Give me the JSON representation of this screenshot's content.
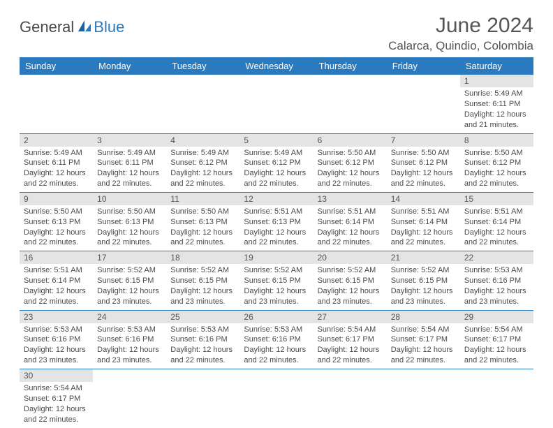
{
  "brand": {
    "general": "General",
    "blue": "Blue"
  },
  "title": "June 2024",
  "location": "Calarca, Quindio, Colombia",
  "colors": {
    "header_bg": "#2a7abf",
    "header_text": "#ffffff",
    "daynum_bg": "#e4e4e4",
    "row_border": "#2a7abf",
    "body_text": "#4a4a4a",
    "title_text": "#555555",
    "page_bg": "#ffffff"
  },
  "dayNames": [
    "Sunday",
    "Monday",
    "Tuesday",
    "Wednesday",
    "Thursday",
    "Friday",
    "Saturday"
  ],
  "weeks": [
    [
      null,
      null,
      null,
      null,
      null,
      null,
      {
        "n": "1",
        "sr": "Sunrise: 5:49 AM",
        "ss": "Sunset: 6:11 PM",
        "d1": "Daylight: 12 hours",
        "d2": "and 21 minutes."
      }
    ],
    [
      {
        "n": "2",
        "sr": "Sunrise: 5:49 AM",
        "ss": "Sunset: 6:11 PM",
        "d1": "Daylight: 12 hours",
        "d2": "and 22 minutes."
      },
      {
        "n": "3",
        "sr": "Sunrise: 5:49 AM",
        "ss": "Sunset: 6:11 PM",
        "d1": "Daylight: 12 hours",
        "d2": "and 22 minutes."
      },
      {
        "n": "4",
        "sr": "Sunrise: 5:49 AM",
        "ss": "Sunset: 6:12 PM",
        "d1": "Daylight: 12 hours",
        "d2": "and 22 minutes."
      },
      {
        "n": "5",
        "sr": "Sunrise: 5:49 AM",
        "ss": "Sunset: 6:12 PM",
        "d1": "Daylight: 12 hours",
        "d2": "and 22 minutes."
      },
      {
        "n": "6",
        "sr": "Sunrise: 5:50 AM",
        "ss": "Sunset: 6:12 PM",
        "d1": "Daylight: 12 hours",
        "d2": "and 22 minutes."
      },
      {
        "n": "7",
        "sr": "Sunrise: 5:50 AM",
        "ss": "Sunset: 6:12 PM",
        "d1": "Daylight: 12 hours",
        "d2": "and 22 minutes."
      },
      {
        "n": "8",
        "sr": "Sunrise: 5:50 AM",
        "ss": "Sunset: 6:12 PM",
        "d1": "Daylight: 12 hours",
        "d2": "and 22 minutes."
      }
    ],
    [
      {
        "n": "9",
        "sr": "Sunrise: 5:50 AM",
        "ss": "Sunset: 6:13 PM",
        "d1": "Daylight: 12 hours",
        "d2": "and 22 minutes."
      },
      {
        "n": "10",
        "sr": "Sunrise: 5:50 AM",
        "ss": "Sunset: 6:13 PM",
        "d1": "Daylight: 12 hours",
        "d2": "and 22 minutes."
      },
      {
        "n": "11",
        "sr": "Sunrise: 5:50 AM",
        "ss": "Sunset: 6:13 PM",
        "d1": "Daylight: 12 hours",
        "d2": "and 22 minutes."
      },
      {
        "n": "12",
        "sr": "Sunrise: 5:51 AM",
        "ss": "Sunset: 6:13 PM",
        "d1": "Daylight: 12 hours",
        "d2": "and 22 minutes."
      },
      {
        "n": "13",
        "sr": "Sunrise: 5:51 AM",
        "ss": "Sunset: 6:14 PM",
        "d1": "Daylight: 12 hours",
        "d2": "and 22 minutes."
      },
      {
        "n": "14",
        "sr": "Sunrise: 5:51 AM",
        "ss": "Sunset: 6:14 PM",
        "d1": "Daylight: 12 hours",
        "d2": "and 22 minutes."
      },
      {
        "n": "15",
        "sr": "Sunrise: 5:51 AM",
        "ss": "Sunset: 6:14 PM",
        "d1": "Daylight: 12 hours",
        "d2": "and 22 minutes."
      }
    ],
    [
      {
        "n": "16",
        "sr": "Sunrise: 5:51 AM",
        "ss": "Sunset: 6:14 PM",
        "d1": "Daylight: 12 hours",
        "d2": "and 22 minutes."
      },
      {
        "n": "17",
        "sr": "Sunrise: 5:52 AM",
        "ss": "Sunset: 6:15 PM",
        "d1": "Daylight: 12 hours",
        "d2": "and 23 minutes."
      },
      {
        "n": "18",
        "sr": "Sunrise: 5:52 AM",
        "ss": "Sunset: 6:15 PM",
        "d1": "Daylight: 12 hours",
        "d2": "and 23 minutes."
      },
      {
        "n": "19",
        "sr": "Sunrise: 5:52 AM",
        "ss": "Sunset: 6:15 PM",
        "d1": "Daylight: 12 hours",
        "d2": "and 23 minutes."
      },
      {
        "n": "20",
        "sr": "Sunrise: 5:52 AM",
        "ss": "Sunset: 6:15 PM",
        "d1": "Daylight: 12 hours",
        "d2": "and 23 minutes."
      },
      {
        "n": "21",
        "sr": "Sunrise: 5:52 AM",
        "ss": "Sunset: 6:15 PM",
        "d1": "Daylight: 12 hours",
        "d2": "and 23 minutes."
      },
      {
        "n": "22",
        "sr": "Sunrise: 5:53 AM",
        "ss": "Sunset: 6:16 PM",
        "d1": "Daylight: 12 hours",
        "d2": "and 23 minutes."
      }
    ],
    [
      {
        "n": "23",
        "sr": "Sunrise: 5:53 AM",
        "ss": "Sunset: 6:16 PM",
        "d1": "Daylight: 12 hours",
        "d2": "and 23 minutes."
      },
      {
        "n": "24",
        "sr": "Sunrise: 5:53 AM",
        "ss": "Sunset: 6:16 PM",
        "d1": "Daylight: 12 hours",
        "d2": "and 23 minutes."
      },
      {
        "n": "25",
        "sr": "Sunrise: 5:53 AM",
        "ss": "Sunset: 6:16 PM",
        "d1": "Daylight: 12 hours",
        "d2": "and 22 minutes."
      },
      {
        "n": "26",
        "sr": "Sunrise: 5:53 AM",
        "ss": "Sunset: 6:16 PM",
        "d1": "Daylight: 12 hours",
        "d2": "and 22 minutes."
      },
      {
        "n": "27",
        "sr": "Sunrise: 5:54 AM",
        "ss": "Sunset: 6:17 PM",
        "d1": "Daylight: 12 hours",
        "d2": "and 22 minutes."
      },
      {
        "n": "28",
        "sr": "Sunrise: 5:54 AM",
        "ss": "Sunset: 6:17 PM",
        "d1": "Daylight: 12 hours",
        "d2": "and 22 minutes."
      },
      {
        "n": "29",
        "sr": "Sunrise: 5:54 AM",
        "ss": "Sunset: 6:17 PM",
        "d1": "Daylight: 12 hours",
        "d2": "and 22 minutes."
      }
    ],
    [
      {
        "n": "30",
        "sr": "Sunrise: 5:54 AM",
        "ss": "Sunset: 6:17 PM",
        "d1": "Daylight: 12 hours",
        "d2": "and 22 minutes."
      },
      null,
      null,
      null,
      null,
      null,
      null
    ]
  ]
}
